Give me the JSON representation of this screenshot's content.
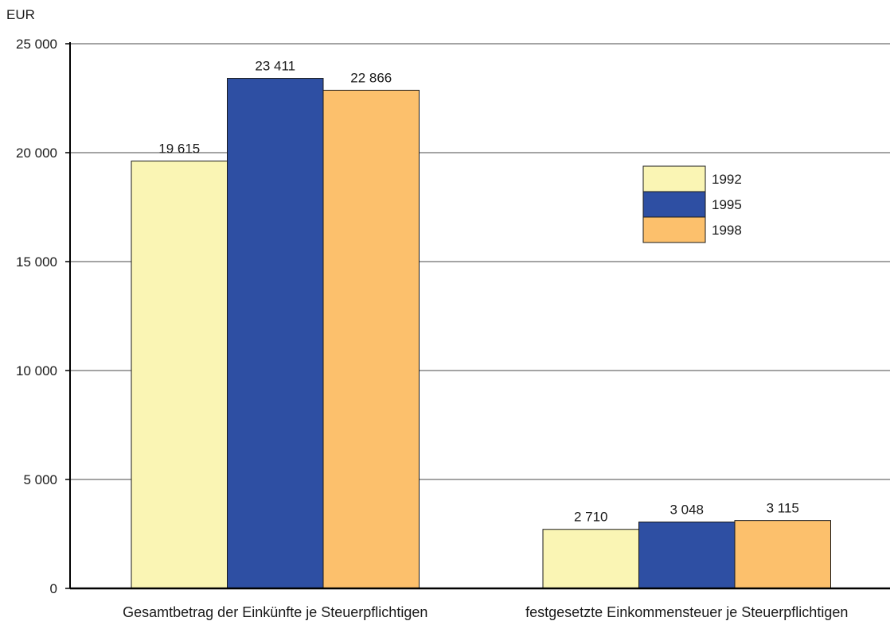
{
  "chart_data": {
    "type": "bar",
    "unit_label": "EUR",
    "categories": [
      "Gesamtbetrag der Einkünfte je Steuerpflichtigen",
      "festgesetzte Einkommensteuer je Steuerpflichtigen"
    ],
    "series": [
      {
        "name": "1992",
        "color": "#faf5b4",
        "values": [
          19615,
          2710
        ],
        "labels": [
          "19 615",
          "2 710"
        ]
      },
      {
        "name": "1995",
        "color": "#2e4fa3",
        "values": [
          23411,
          3048
        ],
        "labels": [
          "23 411",
          "3 048"
        ]
      },
      {
        "name": "1998",
        "color": "#fcc06c",
        "values": [
          22866,
          3115
        ],
        "labels": [
          "22 866",
          "3 115"
        ]
      }
    ],
    "yticks": [
      {
        "value": 0,
        "label": "0"
      },
      {
        "value": 5000,
        "label": "5 000"
      },
      {
        "value": 10000,
        "label": "10 000"
      },
      {
        "value": 15000,
        "label": "15 000"
      },
      {
        "value": 20000,
        "label": "20 000"
      },
      {
        "value": 25000,
        "label": "25 000"
      }
    ],
    "ylim": [
      0,
      25000
    ],
    "grid": true,
    "legend_position": "right"
  }
}
